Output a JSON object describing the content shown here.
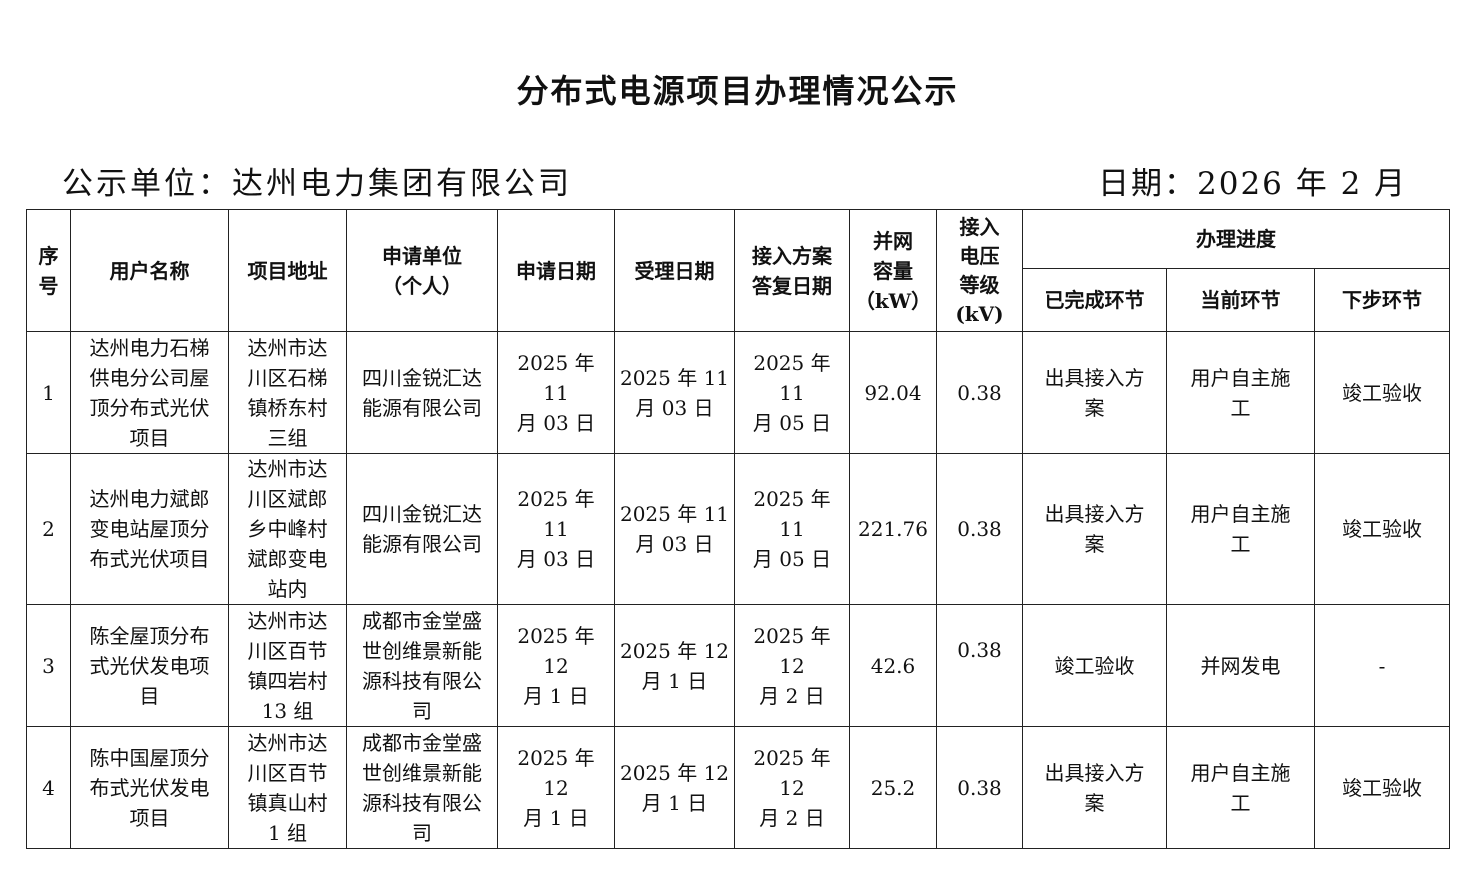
{
  "title": "分布式电源项目办理情况公示",
  "publisher": "公示单位：达州电力集团有限公司",
  "date": "日期：2026 年 2 月",
  "headers": {
    "no": "序\n号",
    "user": "用户名称",
    "address": "项目地址",
    "applicant": "申请单位\n（个人）",
    "apply_date": "申请日期",
    "accept_date": "受理日期",
    "reply_date": "接入方案\n答复日期",
    "capacity": "并网\n容量\n（kW）",
    "voltage": "接入\n电压\n等级\n(kV)",
    "progress": "办理进度",
    "done": "已完成环节",
    "current": "当前环节",
    "next": "下步环节"
  },
  "rows": [
    {
      "no": "1",
      "user": "达州电力石梯\n供电分公司屋\n顶分布式光伏\n项目",
      "address": "达州市达\n川区石梯\n镇桥东村\n三组",
      "applicant": "四川金锐汇达\n能源有限公司",
      "apply_date": "2025 年 11\n月 03 日",
      "accept_date": "2025 年 11\n月 03 日",
      "reply_date": "2025 年 11\n月 05 日",
      "capacity": "92.04",
      "voltage": "0.38",
      "done": "出具接入方\n案",
      "current": "用户自主施\n工",
      "next": "竣工验收"
    },
    {
      "no": "2",
      "user": "达州电力斌郎\n变电站屋顶分\n布式光伏项目",
      "address": "达州市达\n川区斌郎\n乡中峰村\n斌郎变电\n站内",
      "applicant": "四川金锐汇达\n能源有限公司",
      "apply_date": "2025 年 11\n月 03 日",
      "accept_date": "2025 年 11\n月 03 日",
      "reply_date": "2025 年 11\n月 05 日",
      "capacity": "221.76",
      "voltage": "0.38",
      "done": "出具接入方\n案",
      "current": "用户自主施\n工",
      "next": "竣工验收"
    },
    {
      "no": "3",
      "user": "陈全屋顶分布\n式光伏发电项\n目",
      "address": "达州市达\n川区百节\n镇四岩村\n13 组",
      "applicant": "成都市金堂盛\n世创维景新能\n源科技有限公\n司",
      "apply_date": "2025 年 12\n月 1 日",
      "accept_date": "2025 年 12\n月 1 日",
      "reply_date": "2025 年 12\n月 2 日",
      "capacity": "42.6",
      "voltage": "0.38",
      "done": "竣工验收",
      "current": "并网发电",
      "next": "-"
    },
    {
      "no": "4",
      "user": "陈中国屋顶分\n布式光伏发电\n项目",
      "address": "达州市达\n川区百节\n镇真山村\n1 组",
      "applicant": "成都市金堂盛\n世创维景新能\n源科技有限公\n司",
      "apply_date": "2025 年 12\n月 1 日",
      "accept_date": "2025 年 12\n月 1 日",
      "reply_date": "2025 年 12\n月 2 日",
      "capacity": "25.2",
      "voltage": "0.38",
      "done": "出具接入方\n案",
      "current": "用户自主施\n工",
      "next": "竣工验收"
    }
  ]
}
